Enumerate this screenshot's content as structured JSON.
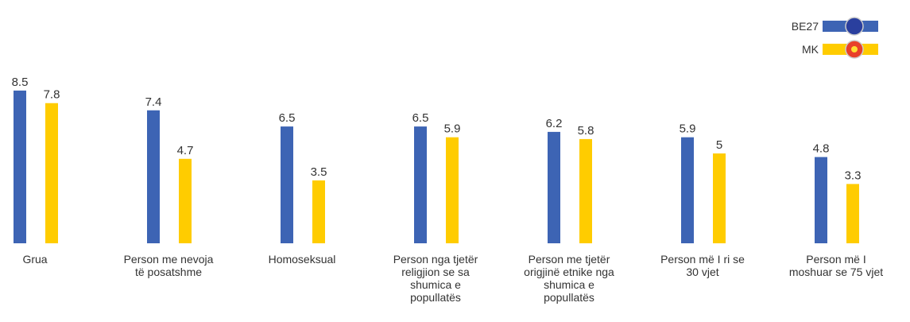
{
  "chart_data": {
    "type": "bar",
    "categories": [
      "Grua",
      "Person me nevoja\ntë posatshme",
      "Homoseksual",
      "Person nga tjetër\nreligjion se sa\nshumica e\npopullatës",
      "Person me tjetër\norigjinë etnike nga\nshumica e\npopullatës",
      "Person më I ri se\n30 vjet",
      "Person më I\nmoshuar se 75 vjet"
    ],
    "series": [
      {
        "name": "BE27",
        "color": "#3d64b4",
        "values": [
          8.5,
          7.4,
          6.5,
          6.5,
          6.2,
          5.9,
          4.8
        ]
      },
      {
        "name": "MK",
        "color": "#ffcc00",
        "values": [
          7.8,
          4.7,
          3.5,
          5.9,
          5.8,
          5,
          3.3
        ]
      }
    ],
    "ylim": [
      0,
      10
    ],
    "legend": "top-right"
  }
}
